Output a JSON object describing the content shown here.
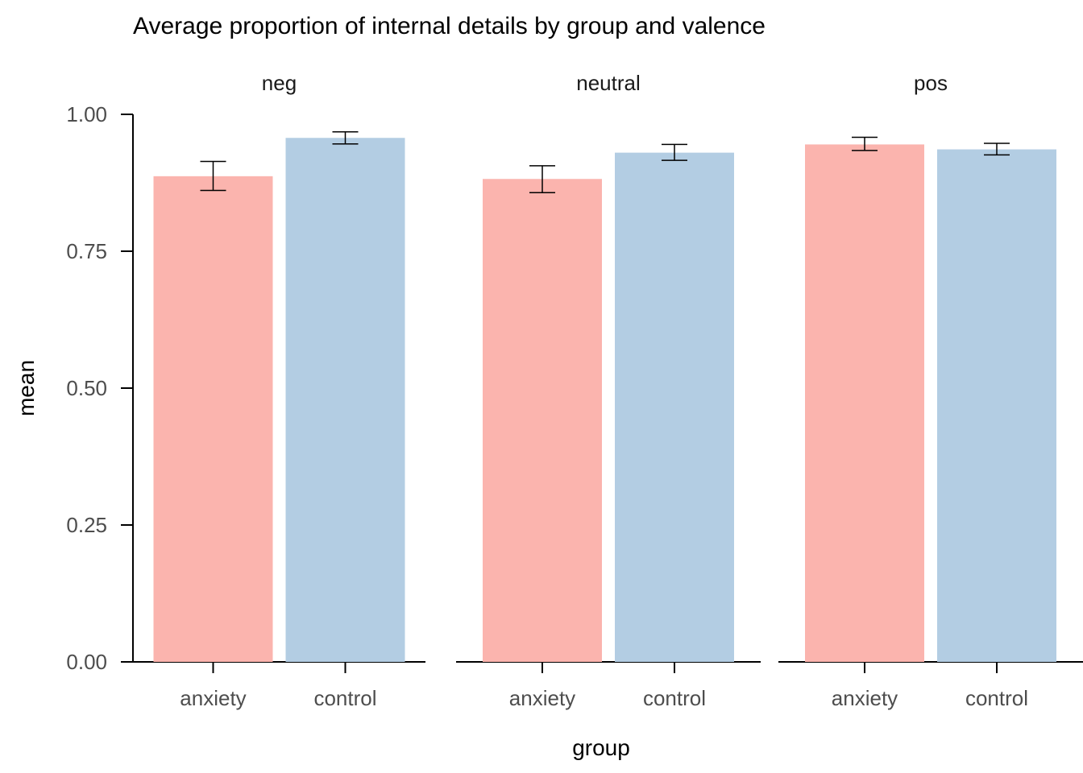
{
  "chart_data": {
    "type": "bar",
    "title": "Average proportion of internal details by group and valence",
    "xlabel": "group",
    "ylabel": "mean",
    "ylim": [
      0,
      1
    ],
    "yticks": [
      "0.00",
      "0.25",
      "0.50",
      "0.75",
      "1.00"
    ],
    "ytick_values": [
      0,
      0.25,
      0.5,
      0.75,
      1.0
    ],
    "categories": [
      "anxiety",
      "control"
    ],
    "colors": {
      "anxiety": "#FBB4AE",
      "control": "#B3CDE3"
    },
    "grid": false,
    "legend": "none",
    "panels": [
      {
        "label": "neg",
        "values": [
          0.887,
          0.957
        ],
        "error_low": [
          0.861,
          0.946
        ],
        "error_high": [
          0.914,
          0.968
        ]
      },
      {
        "label": "neutral",
        "values": [
          0.882,
          0.93
        ],
        "error_low": [
          0.857,
          0.916
        ],
        "error_high": [
          0.906,
          0.945
        ]
      },
      {
        "label": "pos",
        "values": [
          0.945,
          0.936
        ],
        "error_low": [
          0.934,
          0.926
        ],
        "error_high": [
          0.958,
          0.947
        ]
      }
    ]
  }
}
